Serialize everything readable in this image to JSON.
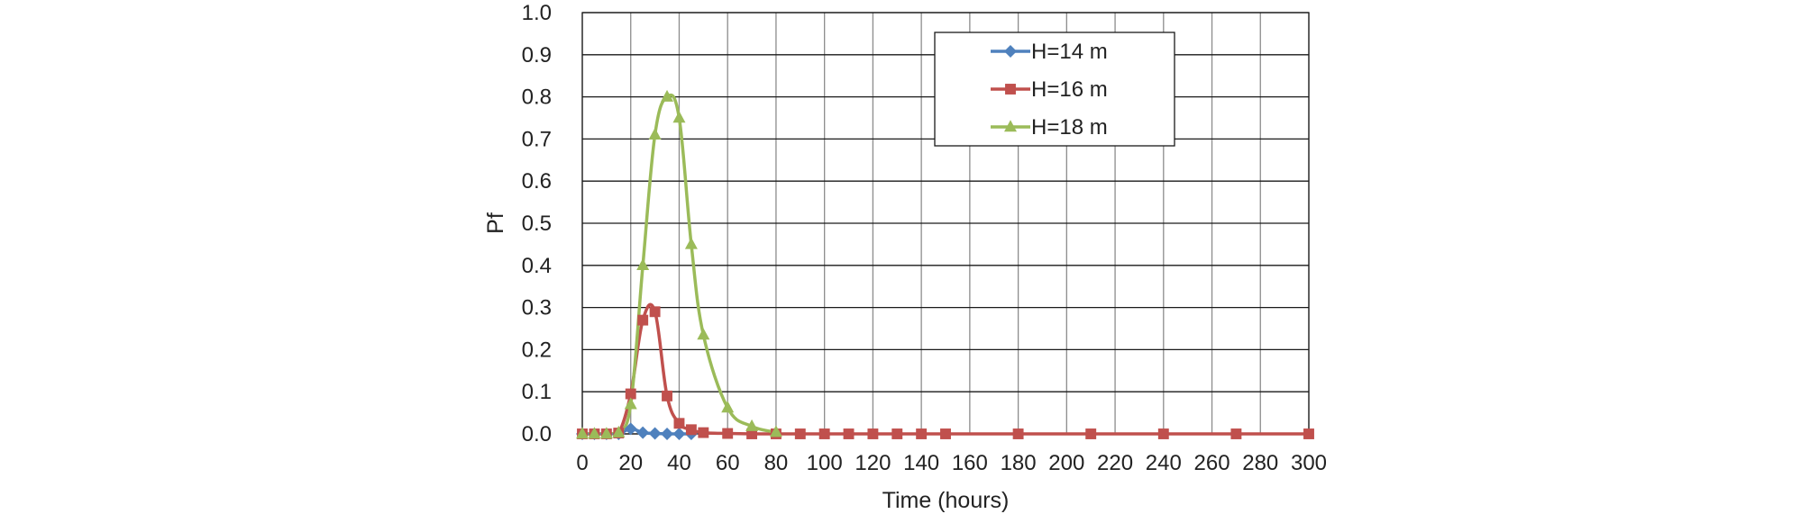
{
  "chart_data": {
    "type": "line",
    "title": "",
    "xlabel": "Time (hours)",
    "ylabel": "Pf",
    "xlim": [
      0,
      300
    ],
    "ylim": [
      0,
      1.0
    ],
    "x_ticks": [
      0,
      20,
      40,
      60,
      80,
      100,
      120,
      140,
      160,
      180,
      200,
      220,
      240,
      260,
      280,
      300
    ],
    "y_ticks": [
      "0.0",
      "0.1",
      "0.2",
      "0.3",
      "0.4",
      "0.5",
      "0.6",
      "0.7",
      "0.8",
      "0.9",
      "1.0"
    ],
    "grid": true,
    "legend_position": "top-center",
    "series": [
      {
        "name": "H=14 m",
        "color": "#4f81bd",
        "marker": "diamond",
        "x": [
          0,
          5,
          10,
          15,
          20,
          25,
          30,
          35,
          40,
          45
        ],
        "y": [
          0.0,
          0.0,
          0.0,
          0.0,
          0.012,
          0.003,
          0.001,
          0.0,
          0.0,
          0.0
        ]
      },
      {
        "name": "H=16 m",
        "color": "#c0504d",
        "marker": "square",
        "x": [
          0,
          5,
          10,
          15,
          20,
          25,
          30,
          35,
          40,
          45,
          50,
          60,
          70,
          80,
          90,
          100,
          110,
          120,
          130,
          140,
          150,
          180,
          210,
          240,
          270,
          300
        ],
        "y": [
          0.0,
          0.0,
          0.0,
          0.002,
          0.095,
          0.27,
          0.29,
          0.09,
          0.025,
          0.01,
          0.003,
          0.001,
          0.0,
          0.0,
          0.0,
          0.0,
          0.0,
          0.0,
          0.0,
          0.0,
          0.0,
          0.0,
          0.0,
          0.0,
          0.0,
          0.0
        ]
      },
      {
        "name": "H=18 m",
        "color": "#9bbb59",
        "marker": "triangle",
        "x": [
          0,
          5,
          10,
          15,
          20,
          25,
          30,
          35,
          40,
          45,
          50,
          60,
          70,
          80
        ],
        "y": [
          0.0,
          0.0,
          0.0,
          0.003,
          0.07,
          0.4,
          0.71,
          0.8,
          0.75,
          0.45,
          0.235,
          0.062,
          0.018,
          0.004
        ]
      }
    ]
  }
}
